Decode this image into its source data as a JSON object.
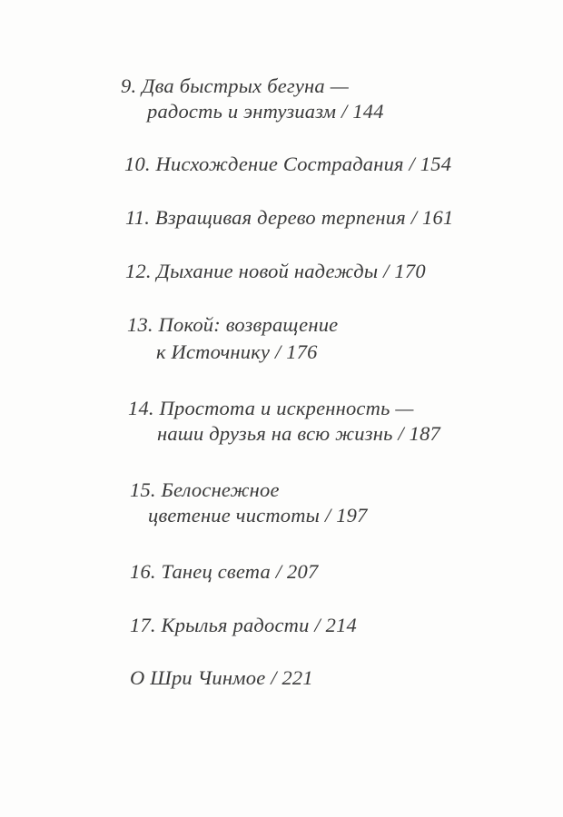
{
  "toc": {
    "entries": [
      {
        "lines": [
          "9. Два быстрых бегуна —",
          "радость и энтузиазм / 144"
        ]
      },
      {
        "lines": [
          "10. Нисхождение Сострадания / 154"
        ]
      },
      {
        "lines": [
          "11. Взращивая дерево терпения / 161"
        ]
      },
      {
        "lines": [
          "12. Дыхание новой надежды / 170"
        ]
      },
      {
        "lines": [
          "13. Покой: возвращение",
          "к Источнику / 176"
        ]
      },
      {
        "lines": [
          "14. Простота и искренность —",
          "наши друзья на всю жизнь / 187"
        ]
      },
      {
        "lines": [
          "15. Белоснежное",
          "цветение чистоты / 197"
        ]
      },
      {
        "lines": [
          "16. Танец света / 207"
        ]
      },
      {
        "lines": [
          "17. Крылья радости / 214"
        ]
      },
      {
        "lines": [
          "О Шри Чинмое / 221"
        ]
      }
    ]
  }
}
